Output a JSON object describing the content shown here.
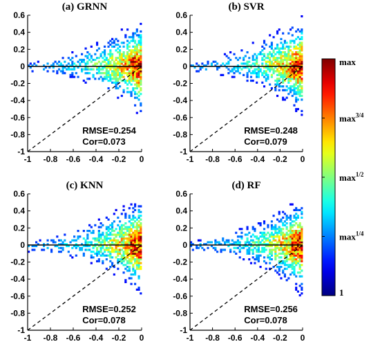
{
  "chart_data": [
    {
      "type": "heatmap",
      "title": "(a) GRNN",
      "xlim": [
        -1,
        0
      ],
      "ylim": [
        -1,
        0.6
      ],
      "xticks": [
        "-1",
        "-0.8",
        "-0.6",
        "-0.4",
        "-0.2",
        "0"
      ],
      "yticks": [
        "-1",
        "-0.8",
        "-0.6",
        "-0.4",
        "-0.2",
        "0",
        "0.2",
        "0.4",
        "0.6"
      ],
      "reference_lines": [
        {
          "style": "solid",
          "x": [
            -1,
            0
          ],
          "y": [
            0,
            0
          ]
        },
        {
          "style": "dashed",
          "x": [
            -1,
            0
          ],
          "y": [
            -1,
            0
          ]
        }
      ],
      "stats": {
        "rmse": "RMSE=0.254",
        "cor": "Cor=0.073"
      },
      "density": {
        "upper_slope": 0.55,
        "lower_spread": 0.18,
        "seed": 11
      }
    },
    {
      "type": "heatmap",
      "title": "(b) SVR",
      "xlim": [
        -1,
        0
      ],
      "ylim": [
        -1,
        0.6
      ],
      "xticks": [
        "-1",
        "-0.8",
        "-0.6",
        "-0.4",
        "-0.2",
        "0"
      ],
      "yticks": [
        "-1",
        "-0.8",
        "-0.6",
        "-0.4",
        "-0.2",
        "0",
        "0.2",
        "0.4",
        "0.6"
      ],
      "reference_lines": [
        {
          "style": "solid",
          "x": [
            -1,
            0
          ],
          "y": [
            0,
            0
          ]
        },
        {
          "style": "dashed",
          "x": [
            -1,
            0
          ],
          "y": [
            -1,
            0
          ]
        }
      ],
      "stats": {
        "rmse": "RMSE=0.248",
        "cor": "Cor=0.079"
      },
      "density": {
        "upper_slope": 0.58,
        "lower_spread": 0.16,
        "seed": 23
      }
    },
    {
      "type": "heatmap",
      "title": "(c) KNN",
      "xlim": [
        -1,
        0
      ],
      "ylim": [
        -1,
        0.6
      ],
      "xticks": [
        "-1",
        "-0.8",
        "-0.6",
        "-0.4",
        "-0.2",
        "0"
      ],
      "yticks": [
        "-1",
        "-0.8",
        "-0.6",
        "-0.4",
        "-0.2",
        "0",
        "0.2",
        "0.4",
        "0.6"
      ],
      "reference_lines": [
        {
          "style": "solid",
          "x": [
            -1,
            0
          ],
          "y": [
            0,
            0
          ]
        },
        {
          "style": "dashed",
          "x": [
            -1,
            0
          ],
          "y": [
            -1,
            0
          ]
        }
      ],
      "stats": {
        "rmse": "RMSE=0.252",
        "cor": "Cor=0.078"
      },
      "density": {
        "upper_slope": 0.56,
        "lower_spread": 0.18,
        "seed": 37
      }
    },
    {
      "type": "heatmap",
      "title": "(d) RF",
      "xlim": [
        -1,
        0
      ],
      "ylim": [
        -1,
        0.6
      ],
      "xticks": [
        "-1",
        "-0.8",
        "-0.6",
        "-0.4",
        "-0.2",
        "0"
      ],
      "yticks": [
        "-1",
        "-0.8",
        "-0.6",
        "-0.4",
        "-0.2",
        "0",
        "0.2",
        "0.4",
        "0.6"
      ],
      "reference_lines": [
        {
          "style": "solid",
          "x": [
            -1,
            0
          ],
          "y": [
            0,
            0
          ]
        },
        {
          "style": "dashed",
          "x": [
            -1,
            0
          ],
          "y": [
            -1,
            0
          ]
        }
      ],
      "stats": {
        "rmse": "RMSE=0.256",
        "cor": "Cor=0.078"
      },
      "density": {
        "upper_slope": 0.55,
        "lower_spread": 0.2,
        "seed": 53
      }
    }
  ],
  "colorbar": {
    "colormap": "jet",
    "labels": [
      {
        "base": "max",
        "exp": "",
        "level": 1
      },
      {
        "base": "max",
        "exp": "3/4",
        "level": 0.75
      },
      {
        "base": "max",
        "exp": "1/2",
        "level": 0.5
      },
      {
        "base": "max",
        "exp": "1/4",
        "level": 0.25
      },
      {
        "base": "1",
        "exp": "",
        "level": 0
      }
    ]
  },
  "colors": {
    "axis": "#000000",
    "background": "#ffffff"
  }
}
